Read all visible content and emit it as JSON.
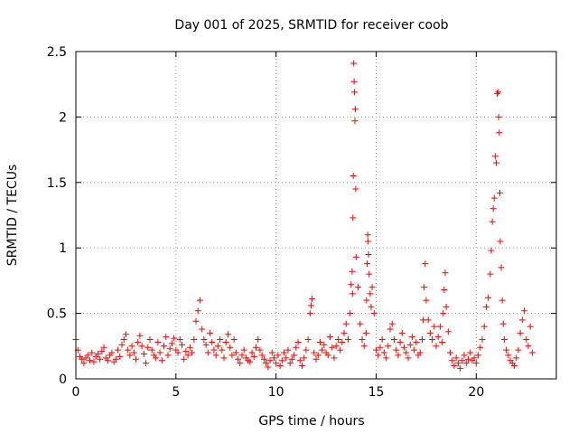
{
  "chart_data": {
    "type": "scatter",
    "title": "Day 001 of 2025, SRMTID for receiver coob",
    "xlabel": "GPS time / hours",
    "ylabel": "SRMTID / TECUs",
    "xlim": [
      0,
      24
    ],
    "ylim": [
      0,
      2.5
    ],
    "xticks": [
      0,
      5,
      10,
      15,
      20
    ],
    "xtick_labels": [
      "0",
      "5",
      "10",
      "15",
      "20"
    ],
    "yticks": [
      0,
      0.5,
      1,
      1.5,
      2,
      2.5
    ],
    "ytick_labels": [
      "0",
      "0.5",
      "1",
      "1.5",
      "2",
      "2.5"
    ],
    "grid": true,
    "marker": "+",
    "color": "#ff0000",
    "series": [
      {
        "name": "SRMTID",
        "x": [
          0.0,
          0.1,
          0.2,
          0.3,
          0.4,
          0.5,
          0.6,
          0.7,
          0.8,
          0.9,
          1.0,
          1.1,
          1.2,
          1.3,
          1.4,
          1.5,
          1.6,
          1.7,
          1.8,
          1.9,
          2.0,
          2.1,
          2.2,
          2.3,
          2.4,
          2.5,
          2.6,
          2.7,
          2.8,
          2.9,
          3.0,
          3.1,
          3.2,
          3.3,
          3.4,
          3.5,
          3.6,
          3.7,
          3.8,
          3.9,
          4.0,
          4.1,
          4.2,
          4.3,
          4.4,
          4.5,
          4.6,
          4.7,
          4.8,
          4.9,
          5.0,
          5.1,
          5.2,
          5.3,
          5.4,
          5.5,
          5.6,
          5.7,
          5.8,
          5.9,
          6.0,
          6.1,
          6.2,
          6.3,
          6.4,
          6.5,
          6.6,
          6.7,
          6.8,
          6.9,
          7.0,
          7.1,
          7.2,
          7.3,
          7.4,
          7.5,
          7.6,
          7.7,
          7.8,
          7.9,
          8.0,
          8.1,
          8.2,
          8.3,
          8.4,
          8.5,
          8.6,
          8.7,
          8.8,
          8.9,
          9.0,
          9.1,
          9.2,
          9.3,
          9.4,
          9.5,
          9.6,
          9.7,
          9.8,
          9.9,
          10.0,
          10.1,
          10.2,
          10.3,
          10.4,
          10.5,
          10.6,
          10.7,
          10.8,
          10.9,
          11.0,
          11.1,
          11.2,
          11.3,
          11.4,
          11.5,
          11.6,
          11.7,
          11.75,
          11.8,
          11.9,
          12.0,
          12.1,
          12.2,
          12.3,
          12.4,
          12.5,
          12.6,
          12.7,
          12.8,
          12.9,
          13.0,
          13.1,
          13.2,
          13.3,
          13.4,
          13.5,
          13.6,
          13.7,
          13.75,
          13.8,
          13.82,
          13.84,
          13.86,
          13.88,
          13.9,
          13.92,
          13.94,
          13.96,
          13.98,
          14.0,
          14.1,
          14.2,
          14.3,
          14.4,
          14.5,
          14.52,
          14.55,
          14.58,
          14.6,
          14.62,
          14.65,
          14.7,
          14.75,
          14.8,
          14.9,
          15.0,
          15.1,
          15.2,
          15.3,
          15.4,
          15.5,
          15.6,
          15.7,
          15.8,
          15.9,
          16.0,
          16.1,
          16.2,
          16.3,
          16.4,
          16.5,
          16.6,
          16.7,
          16.8,
          16.9,
          17.0,
          17.1,
          17.2,
          17.3,
          17.35,
          17.4,
          17.45,
          17.5,
          17.6,
          17.7,
          17.8,
          17.9,
          18.0,
          18.1,
          18.2,
          18.3,
          18.35,
          18.4,
          18.45,
          18.5,
          18.6,
          18.7,
          18.8,
          18.9,
          19.0,
          19.1,
          19.2,
          19.3,
          19.4,
          19.5,
          19.6,
          19.7,
          19.8,
          19.9,
          20.0,
          20.1,
          20.2,
          20.3,
          20.4,
          20.5,
          20.6,
          20.7,
          20.75,
          20.8,
          20.85,
          20.9,
          20.95,
          21.0,
          21.05,
          21.1,
          21.12,
          21.15,
          21.18,
          21.2,
          21.25,
          21.3,
          21.35,
          21.4,
          21.5,
          21.6,
          21.7,
          21.8,
          21.9,
          22.0,
          22.1,
          22.2,
          22.3,
          22.4,
          22.5,
          22.6,
          22.7,
          22.8
        ],
        "y": [
          0.3,
          0.22,
          0.17,
          0.15,
          0.12,
          0.16,
          0.18,
          0.14,
          0.2,
          0.13,
          0.17,
          0.19,
          0.15,
          0.21,
          0.24,
          0.16,
          0.14,
          0.18,
          0.2,
          0.13,
          0.15,
          0.22,
          0.17,
          0.26,
          0.3,
          0.34,
          0.22,
          0.18,
          0.25,
          0.2,
          0.15,
          0.28,
          0.33,
          0.25,
          0.19,
          0.12,
          0.24,
          0.3,
          0.22,
          0.18,
          0.16,
          0.28,
          0.2,
          0.14,
          0.25,
          0.32,
          0.18,
          0.23,
          0.27,
          0.31,
          0.22,
          0.2,
          0.3,
          0.26,
          0.15,
          0.21,
          0.18,
          0.24,
          0.2,
          0.3,
          0.44,
          0.52,
          0.6,
          0.38,
          0.3,
          0.26,
          0.2,
          0.35,
          0.28,
          0.22,
          0.18,
          0.25,
          0.3,
          0.22,
          0.16,
          0.28,
          0.34,
          0.24,
          0.18,
          0.3,
          0.2,
          0.15,
          0.12,
          0.18,
          0.22,
          0.16,
          0.14,
          0.13,
          0.2,
          0.17,
          0.24,
          0.3,
          0.22,
          0.18,
          0.15,
          0.12,
          0.09,
          0.14,
          0.2,
          0.16,
          0.12,
          0.18,
          0.1,
          0.14,
          0.2,
          0.16,
          0.22,
          0.12,
          0.15,
          0.18,
          0.24,
          0.28,
          0.14,
          0.1,
          0.16,
          0.22,
          0.3,
          0.5,
          0.56,
          0.61,
          0.2,
          0.15,
          0.18,
          0.28,
          0.22,
          0.26,
          0.2,
          0.18,
          0.32,
          0.24,
          0.16,
          0.25,
          0.3,
          0.22,
          0.28,
          0.35,
          0.42,
          0.3,
          0.5,
          0.72,
          0.82,
          0.65,
          1.23,
          1.55,
          2.41,
          2.27,
          2.19,
          1.97,
          2.06,
          1.45,
          0.93,
          0.7,
          0.42,
          0.3,
          0.25,
          0.35,
          0.6,
          0.88,
          1.1,
          1.05,
          0.95,
          0.8,
          0.65,
          0.55,
          0.7,
          0.5,
          0.22,
          0.18,
          0.24,
          0.3,
          0.2,
          0.16,
          0.25,
          0.38,
          0.42,
          0.3,
          0.22,
          0.18,
          0.28,
          0.35,
          0.24,
          0.2,
          0.16,
          0.26,
          0.32,
          0.22,
          0.28,
          0.18,
          0.2,
          0.3,
          0.45,
          0.7,
          0.88,
          0.6,
          0.45,
          0.35,
          0.3,
          0.4,
          0.25,
          0.32,
          0.4,
          0.28,
          0.5,
          0.68,
          0.81,
          0.55,
          0.36,
          0.2,
          0.14,
          0.1,
          0.16,
          0.12,
          0.08,
          0.14,
          0.18,
          0.12,
          0.15,
          0.2,
          0.14,
          0.16,
          0.12,
          0.18,
          0.24,
          0.3,
          0.4,
          0.55,
          0.62,
          0.8,
          0.98,
          1.2,
          1.3,
          1.38,
          1.7,
          1.65,
          2.18,
          2.19,
          2.0,
          1.88,
          1.42,
          1.05,
          0.85,
          0.6,
          0.42,
          0.3,
          0.22,
          0.18,
          0.14,
          0.12,
          0.1,
          0.16,
          0.22,
          0.35,
          0.45,
          0.52,
          0.3,
          0.25,
          0.4,
          0.2
        ]
      }
    ]
  }
}
